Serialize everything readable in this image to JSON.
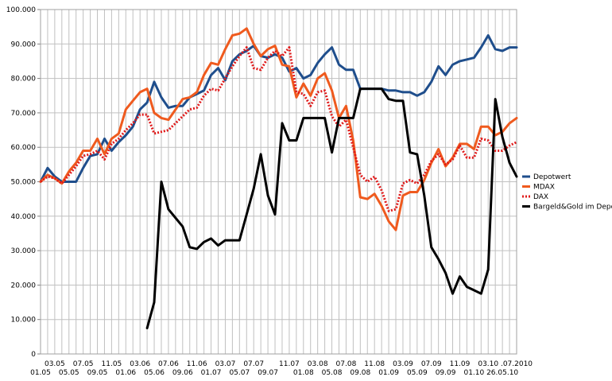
{
  "chart_data": {
    "type": "line",
    "title": "",
    "xlabel": "",
    "ylabel": "",
    "ylim": [
      0,
      100000
    ],
    "grid": true,
    "legend_position": "right",
    "y_ticks": [
      "0",
      "10.000",
      "20.000",
      "30.000",
      "40.000",
      "50.000",
      "60.000",
      "70.000",
      "80.000",
      "90.000",
      "100.000"
    ],
    "x_labels_upper": [
      "03.05",
      "07.05",
      "11.05",
      "03.06",
      "07.06",
      "11.06",
      "03.07",
      "07.07",
      "11.07",
      "03.08",
      "07.08",
      "11.08",
      "03.09",
      "07.09",
      "11.09",
      "03.10",
      ".07.2010"
    ],
    "x_labels_lower": [
      "01.05",
      "05.05",
      "09.05",
      "01.06",
      "05.06",
      "09.06",
      "01.07",
      "05.07",
      "09.07",
      "01.08",
      "05.08",
      "09.08",
      "01.09",
      "05.09",
      "09.09",
      "01.10",
      "26.05.10"
    ],
    "series": [
      {
        "name": "Depotwert",
        "color": "#1f4e8c",
        "style": "solid",
        "values": [
          50000,
          54000,
          51500,
          50000,
          50000,
          50000,
          54000,
          57500,
          58000,
          62500,
          59000,
          61500,
          63500,
          66000,
          71000,
          73000,
          79000,
          74500,
          71500,
          72000,
          72000,
          74500,
          75500,
          76500,
          81000,
          83000,
          79500,
          85000,
          87000,
          88000,
          89500,
          86500,
          86000,
          87000,
          86000,
          82000,
          83000,
          80000,
          81000,
          84500,
          87000,
          89000,
          84000,
          82500,
          82500,
          77000,
          77000,
          77000,
          77000,
          76500,
          76500,
          76000,
          76000,
          75000,
          76000,
          79000,
          83500,
          81000,
          84000,
          85000,
          85500,
          86000,
          89000,
          92500,
          88500,
          88000,
          89000,
          89000
        ]
      },
      {
        "name": "MDAX",
        "color": "#ef5a1e",
        "style": "solid",
        "values": [
          50000,
          52000,
          51000,
          49500,
          53000,
          55500,
          59000,
          59000,
          62500,
          58000,
          62500,
          64000,
          71000,
          73500,
          76000,
          77000,
          70000,
          68500,
          68000,
          71000,
          74000,
          74500,
          76000,
          81000,
          84500,
          84000,
          88500,
          92500,
          93000,
          94500,
          90000,
          86500,
          88500,
          89500,
          84000,
          83500,
          74500,
          78500,
          75000,
          80000,
          81500,
          76500,
          68500,
          72000,
          62000,
          45500,
          45000,
          46500,
          43000,
          38500,
          36000,
          46000,
          47000,
          47000,
          50500,
          55500,
          59500,
          54500,
          57000,
          61000,
          61000,
          59500,
          66000,
          66000,
          63500,
          64500,
          67000,
          68500
        ]
      },
      {
        "name": "DAX",
        "color": "#e01a1a",
        "style": "dotted",
        "values": [
          50000,
          51500,
          51000,
          49500,
          52000,
          54500,
          57500,
          58000,
          59000,
          56500,
          61000,
          62500,
          65000,
          67000,
          69500,
          69500,
          64000,
          64500,
          65000,
          67000,
          69000,
          71000,
          71500,
          75000,
          77000,
          76500,
          80000,
          83500,
          86500,
          89000,
          83000,
          82500,
          86000,
          88000,
          86500,
          89000,
          76000,
          75500,
          72000,
          76000,
          76500,
          69000,
          66000,
          68000,
          60000,
          52000,
          50000,
          51500,
          47500,
          41500,
          42000,
          49500,
          50500,
          49500,
          52000,
          56000,
          58000,
          55000,
          56500,
          60500,
          57000,
          57000,
          62500,
          62000,
          59000,
          59000,
          60500,
          61500
        ]
      },
      {
        "name": "Bargeld&Gold im Depot",
        "color": "#000000",
        "style": "solid",
        "values": [
          null,
          null,
          null,
          null,
          null,
          null,
          null,
          null,
          null,
          null,
          null,
          null,
          null,
          null,
          null,
          7500,
          15000,
          50000,
          42000,
          39500,
          37000,
          31000,
          30500,
          32500,
          33500,
          31500,
          33000,
          33000,
          33000,
          40500,
          48000,
          58000,
          46000,
          40500,
          67000,
          62000,
          62000,
          68500,
          68500,
          68500,
          68500,
          58500,
          68500,
          68500,
          68500,
          77000,
          77000,
          77000,
          77000,
          74000,
          73500,
          73500,
          58500,
          58000,
          46000,
          31000,
          27500,
          23500,
          17500,
          22500,
          19500,
          18500,
          17500,
          24500,
          74000,
          63000,
          55500,
          51500
        ]
      }
    ]
  }
}
